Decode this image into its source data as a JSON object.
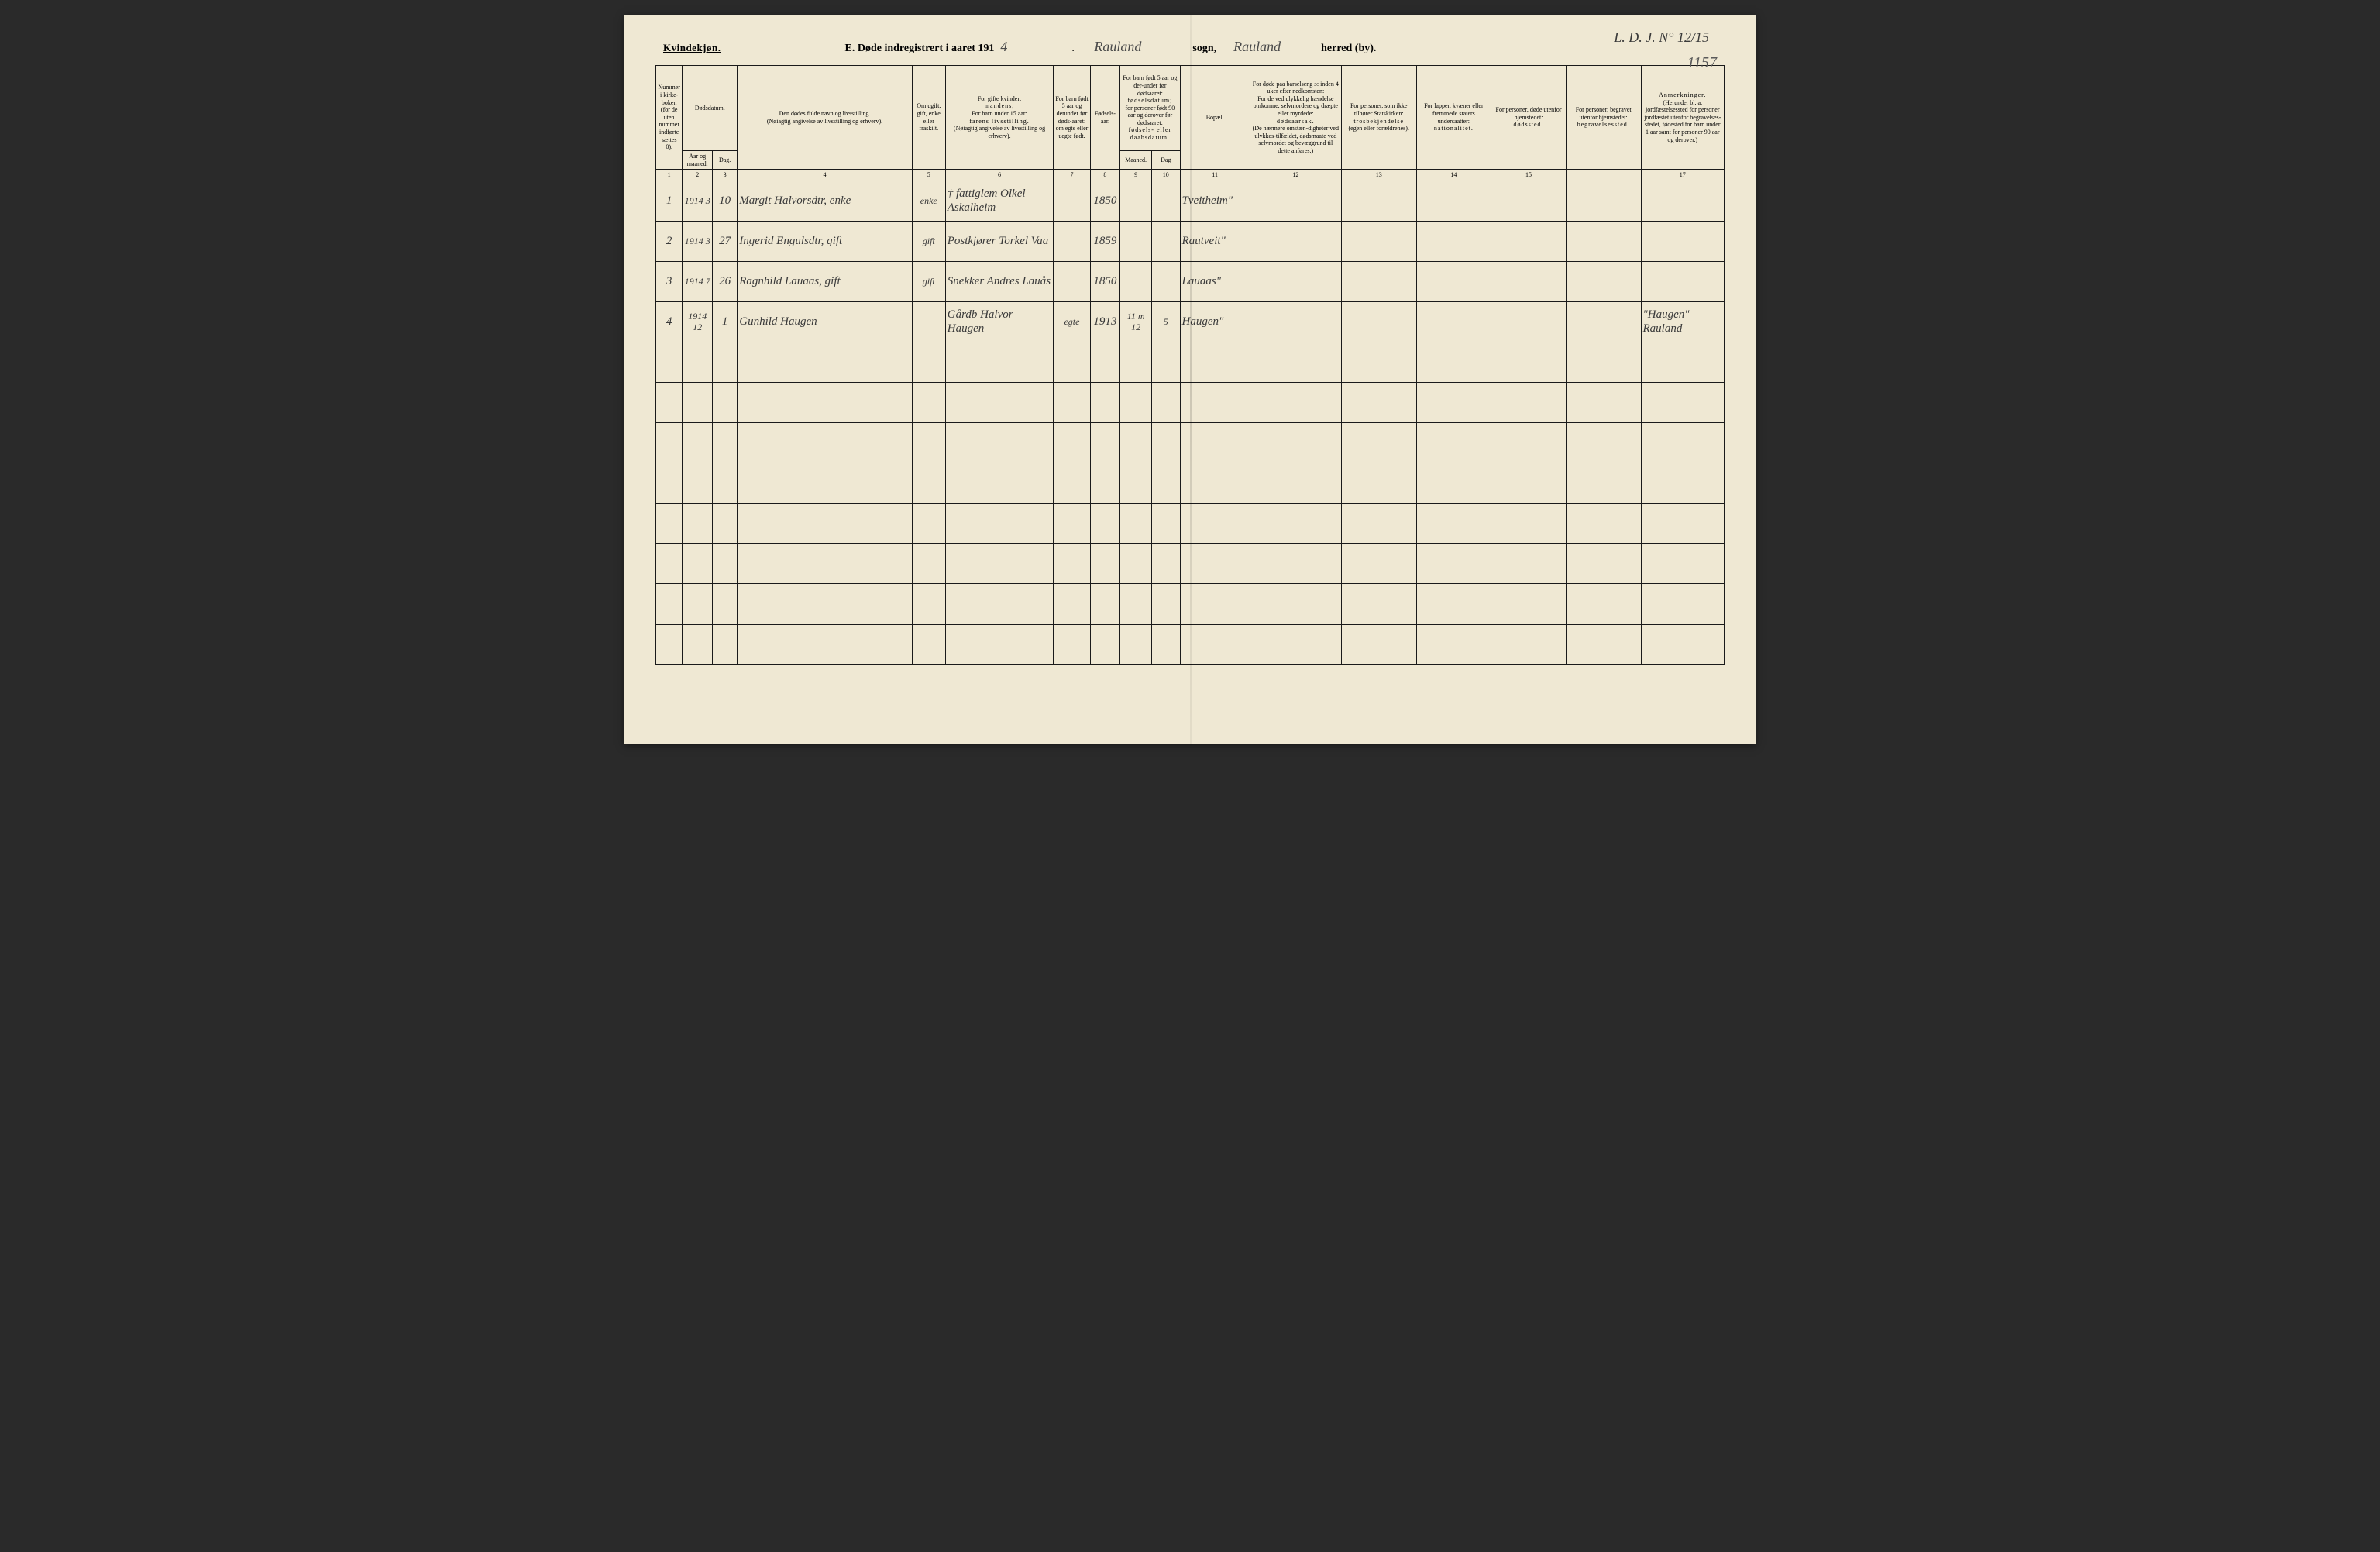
{
  "top_right_note": "L. D. J. N° 12/15",
  "page_number": "1157",
  "header": {
    "left": "Kvindekjøn.",
    "letter": "E.",
    "title_pre": "Døde indregistrert i aaret 191",
    "year_suffix": "4",
    "sogn_hand": "Rauland",
    "sogn_label": "sogn,",
    "herred_hand": "Rauland",
    "herred_label": "herred (by)."
  },
  "columns": {
    "c1": "Nummer i kirke-boken (for de uten nummer indførte sættes 0).",
    "c2a": "Dødsdatum.",
    "c2b_aar": "Aar og maaned.",
    "c2b_dag": "Dag.",
    "c4a": "Den dødes fulde navn og livsstilling.",
    "c4b": "(Nøiagtig angivelse av livsstilling og erhverv).",
    "c5": "Om ugift, gift, enke eller fraskilt.",
    "c6a": "For gifte kvinder:",
    "c6b": "mandens,",
    "c6c": "For barn under 15 aar:",
    "c6d": "farens livsstilling.",
    "c6e": "(Nøiagtig angivelse av livsstilling og erhverv).",
    "c7": "For barn født 5 aar og derunder før døds-aaret: om egte eller uegte født.",
    "c8": "Fødsels-aar.",
    "c910a": "For barn født 5 aar og der-under før dødsaaret:",
    "c910b": "fødselsdatum;",
    "c910c": "for personer født 90 aar og derover før dødsaaret:",
    "c910d": "fødsels- eller daabsdatum.",
    "c9": "Maaned.",
    "c10": "Dag",
    "c11": "Bopæl.",
    "c12a": "For døde paa barselseng ɔ: inden 4 uker efter nedkomsten:",
    "c12b": "For de ved ulykkelig hændelse omkomne, selvmordere og dræpte eller myrdede:",
    "c12c": "dødsaarsak.",
    "c12d": "(De nærmere omstæn-digheter ved ulykkes-tilfældet, dødsmaate ved selvmordet og bevæggrund til dette anføres.)",
    "c13a": "For personer, som ikke tilhører Statskirken:",
    "c13b": "trosbekjendelse",
    "c13c": "(egen eller forældrenes).",
    "c14a": "For lapper, kvæner eller fremmede staters undersaatter:",
    "c14b": "nationalitet.",
    "c15a": "For personer, døde utenfor hjemstedet:",
    "c15b": "dødssted.",
    "c16a": "For personer, begravet utenfor hjemstedet:",
    "c16b": "begravelsessted.",
    "c17a": "Anmerkninger.",
    "c17b": "(Herunder bl. a. jordfæstelsessted for personer jordfæstet utenfor begravelses-stedet, fødested for barn under 1 aar samt for personer 90 aar og derover.)"
  },
  "colnums": [
    "1",
    "2",
    "3",
    "4",
    "5",
    "6",
    "7",
    "8",
    "9",
    "10",
    "11",
    "12",
    "13",
    "14",
    "15",
    "",
    "17"
  ],
  "rows": [
    {
      "n": "1",
      "aar": "1914 3",
      "dag": "10",
      "name": "Margit Halvorsdtr, enke",
      "civil": "enke",
      "parent": "† fattiglem Olkel Askalheim",
      "egte": "",
      "faar": "1850",
      "fm": "",
      "fd": "",
      "bopael": "Tveitheim\"",
      "col12": "",
      "col13": "",
      "col14": "",
      "col15": "",
      "col16": "",
      "col17": ""
    },
    {
      "n": "2",
      "aar": "1914 3",
      "dag": "27",
      "name": "Ingerid Engulsdtr, gift",
      "civil": "gift",
      "parent": "Postkjører Torkel Vaa",
      "egte": "",
      "faar": "1859",
      "fm": "",
      "fd": "",
      "bopael": "Rautveit\"",
      "col12": "",
      "col13": "",
      "col14": "",
      "col15": "",
      "col16": "",
      "col17": ""
    },
    {
      "n": "3",
      "aar": "1914 7",
      "dag": "26",
      "name": "Ragnhild Lauaas, gift",
      "civil": "gift",
      "parent": "Snekker Andres Lauås",
      "egte": "",
      "faar": "1850",
      "fm": "",
      "fd": "",
      "bopael": "Lauaas\"",
      "col12": "",
      "col13": "",
      "col14": "",
      "col15": "",
      "col16": "",
      "col17": ""
    },
    {
      "n": "4",
      "aar": "1914 12",
      "dag": "1",
      "name": "Gunhild Haugen",
      "civil": "",
      "parent": "Gårdb Halvor Haugen",
      "egte": "egte",
      "faar": "1913",
      "fm": "11 m 12",
      "fd": "5",
      "bopael": "Haugen\"",
      "col12": "",
      "col13": "",
      "col14": "",
      "col15": "",
      "col16": "",
      "col17": "\"Haugen\" Rauland"
    }
  ],
  "blank_rows": 8,
  "styling": {
    "page_bg": "#efe8d3",
    "border_color": "#1a1a1a",
    "ink_color": "#3a3a3a",
    "header_fontsize": 14,
    "cell_fontsize": 15,
    "th_fontsize": 8
  }
}
